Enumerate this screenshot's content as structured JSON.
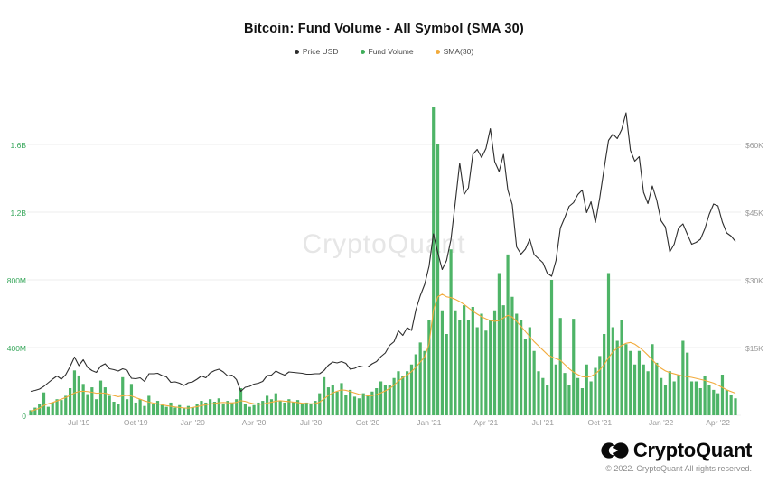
{
  "header": {
    "title": "Bitcoin: Fund Volume - All Symbol (SMA 30)"
  },
  "legend": {
    "items": [
      {
        "label": "Price USD",
        "color": "#2d2d2d"
      },
      {
        "label": "Fund Volume",
        "color": "#3fae5a"
      },
      {
        "label": "SMA(30)",
        "color": "#f2ab3c"
      }
    ]
  },
  "watermark": {
    "text": "CryptoQuant"
  },
  "footer": {
    "brand": "CryptoQuant",
    "copyright": "© 2022. CryptoQuant All rights reserved."
  },
  "chart_data": {
    "type": "combo",
    "title": "Bitcoin: Fund Volume - All Symbol (SMA 30)",
    "grid": "horizontal",
    "legend_position": "top-center",
    "x_start": "Apr 2019",
    "x_end": "May 2022",
    "x_interval": "weekly",
    "x_ticks": [
      {
        "label": "Jul '19",
        "index": 11
      },
      {
        "label": "Oct '19",
        "index": 24
      },
      {
        "label": "Jan '20",
        "index": 37
      },
      {
        "label": "Apr '20",
        "index": 51
      },
      {
        "label": "Jul '20",
        "index": 64
      },
      {
        "label": "Oct '20",
        "index": 77
      },
      {
        "label": "Jan '21",
        "index": 91
      },
      {
        "label": "Apr '21",
        "index": 104
      },
      {
        "label": "Jul '21",
        "index": 117
      },
      {
        "label": "Oct '21",
        "index": 130
      },
      {
        "label": "Jan '22",
        "index": 144
      },
      {
        "label": "Apr '22",
        "index": 157
      }
    ],
    "y_left": {
      "name": "Fund Volume",
      "unit": "USD (millions)",
      "max": 1600,
      "ticks": [
        {
          "label": "0",
          "value": 0
        },
        {
          "label": "400M",
          "value": 400
        },
        {
          "label": "800M",
          "value": 800
        },
        {
          "label": "1.2B",
          "value": 1200
        },
        {
          "label": "1.6B",
          "value": 1600
        }
      ]
    },
    "y_right": {
      "name": "Price USD",
      "max": 60000,
      "ticks": [
        {
          "label": "$15K",
          "value": 15000
        },
        {
          "label": "$30K",
          "value": 30000
        },
        {
          "label": "$45K",
          "value": 45000
        },
        {
          "label": "$60K",
          "value": 60000
        }
      ]
    },
    "series": [
      {
        "name": "Price USD",
        "type": "line",
        "axis": "right",
        "color": "#2d2d2d",
        "values": [
          5300,
          5500,
          5800,
          6400,
          7200,
          8000,
          8700,
          8000,
          9000,
          10800,
          12900,
          11000,
          12300,
          10600,
          9900,
          9500,
          10900,
          11400,
          10300,
          10100,
          9800,
          10300,
          10000,
          8200,
          8100,
          8300,
          7500,
          9200,
          9200,
          9300,
          8800,
          8500,
          7300,
          7400,
          7100,
          6600,
          7200,
          7400,
          8000,
          8700,
          8300,
          9400,
          9900,
          10200,
          9600,
          8700,
          8900,
          7900,
          5300,
          6200,
          6400,
          6900,
          7100,
          7500,
          8800,
          8900,
          9800,
          9300,
          8900,
          9600,
          9500,
          9400,
          9300,
          9100,
          9100,
          9200,
          9200,
          9900,
          11100,
          11800,
          11600,
          11900,
          11500,
          10200,
          10400,
          10900,
          10700,
          10700,
          11400,
          11900,
          13000,
          13800,
          15500,
          16300,
          18700,
          17700,
          19400,
          18800,
          23400,
          26500,
          29000,
          33000,
          40200,
          36000,
          32300,
          34300,
          38900,
          47200,
          55900,
          48900,
          50400,
          57800,
          58900,
          57100,
          59100,
          63500,
          56200,
          54000,
          57800,
          49900,
          46700,
          37300,
          35700,
          36800,
          39000,
          35600,
          34700,
          33800,
          31500,
          30800,
          34300,
          41500,
          43800,
          46300,
          47100,
          48900,
          49900,
          44900,
          47300,
          42700,
          48200,
          54700,
          60900,
          62300,
          61300,
          63300,
          67000,
          58700,
          56300,
          57300,
          49400,
          46900,
          50800,
          47700,
          43100,
          41700,
          36200,
          37900,
          41500,
          42400,
          40100,
          37900,
          38300,
          39000,
          41300,
          44500,
          46800,
          46400,
          42800,
          40400,
          39700,
          38500
        ]
      },
      {
        "name": "Fund Volume",
        "type": "bar",
        "axis": "left",
        "color": "#3fae5a",
        "values": [
          30,
          45,
          65,
          135,
          50,
          75,
          95,
          90,
          115,
          160,
          265,
          235,
          185,
          125,
          165,
          95,
          205,
          165,
          115,
          80,
          65,
          225,
          95,
          185,
          75,
          95,
          55,
          115,
          65,
          85,
          60,
          50,
          75,
          45,
          60,
          40,
          55,
          48,
          65,
          85,
          75,
          95,
          80,
          100,
          70,
          85,
          75,
          95,
          160,
          65,
          50,
          60,
          75,
          85,
          115,
          95,
          130,
          85,
          75,
          95,
          80,
          90,
          65,
          75,
          70,
          85,
          130,
          225,
          165,
          180,
          140,
          190,
          120,
          150,
          110,
          100,
          130,
          120,
          140,
          160,
          200,
          180,
          180,
          220,
          260,
          230,
          260,
          300,
          360,
          430,
          380,
          560,
          1820,
          1600,
          620,
          480,
          980,
          620,
          560,
          650,
          560,
          640,
          520,
          600,
          500,
          560,
          620,
          840,
          650,
          950,
          700,
          600,
          560,
          450,
          520,
          380,
          260,
          220,
          180,
          800,
          300,
          575,
          250,
          180,
          570,
          220,
          160,
          300,
          200,
          280,
          350,
          480,
          840,
          520,
          440,
          560,
          420,
          380,
          300,
          380,
          300,
          260,
          420,
          310,
          220,
          180,
          260,
          200,
          240,
          440,
          370,
          200,
          200,
          160,
          230,
          180,
          150,
          130,
          240,
          150,
          120,
          100
        ]
      },
      {
        "name": "SMA(30)",
        "type": "line",
        "axis": "left",
        "color": "#f2ab3c",
        "values": [
          25,
          32,
          42,
          58,
          68,
          75,
          85,
          95,
          105,
          118,
          132,
          140,
          142,
          140,
          136,
          130,
          132,
          130,
          124,
          116,
          110,
          115,
          118,
          114,
          104,
          95,
          85,
          78,
          72,
          68,
          62,
          57,
          53,
          49,
          46,
          43,
          42,
          46,
          51,
          57,
          62,
          67,
          70,
          74,
          76,
          74,
          73,
          76,
          86,
          82,
          74,
          68,
          65,
          66,
          72,
          77,
          83,
          86,
          83,
          81,
          78,
          75,
          71,
          69,
          67,
          69,
          77,
          97,
          117,
          132,
          142,
          150,
          147,
          140,
          132,
          124,
          120,
          115,
          116,
          122,
          132,
          144,
          158,
          178,
          202,
          222,
          238,
          258,
          284,
          315,
          345,
          420,
          620,
          700,
          715,
          700,
          695,
          685,
          672,
          655,
          635,
          615,
          598,
          582,
          570,
          560,
          555,
          560,
          575,
          590,
          580,
          555,
          525,
          495,
          465,
          435,
          410,
          385,
          360,
          345,
          335,
          325,
          300,
          275,
          255,
          240,
          228,
          225,
          230,
          245,
          268,
          300,
          340,
          375,
          398,
          412,
          425,
          430,
          420,
          402,
          380,
          355,
          328,
          300,
          278,
          262,
          252,
          245,
          238,
          232,
          228,
          224,
          218,
          212,
          206,
          198,
          190,
          178,
          164,
          150,
          140,
          130
        ]
      }
    ]
  }
}
